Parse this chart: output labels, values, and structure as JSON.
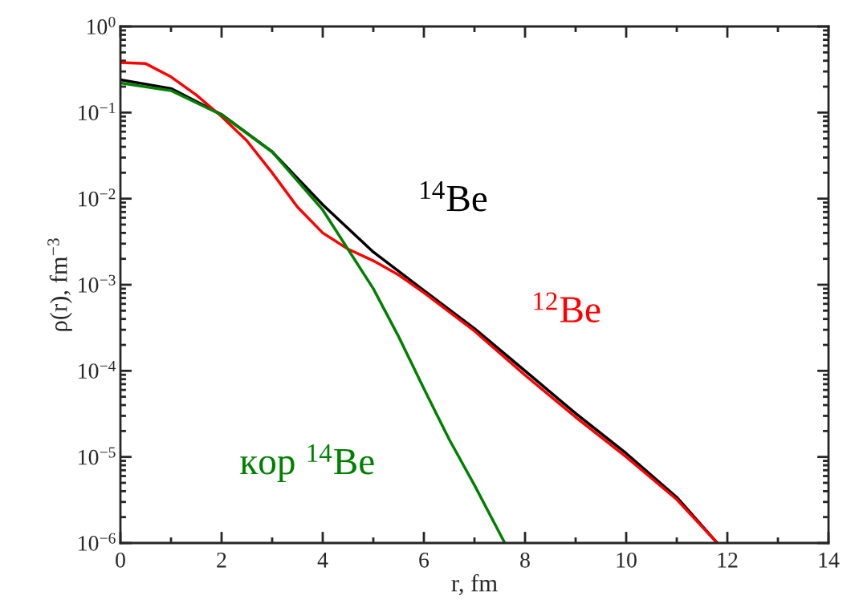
{
  "chart_data": {
    "type": "line",
    "xlabel": "r, fm",
    "ylabel": "ρ(r), fm$^{−3}$",
    "log": "y",
    "grid": false,
    "legend": false,
    "xlim": [
      0,
      14
    ],
    "xticks": [
      0,
      2,
      4,
      6,
      8,
      10,
      12,
      14
    ],
    "ylim": [
      1e-06,
      1
    ],
    "yticks": [
      {
        "value": 1e-06,
        "label": "10$^{−6}$"
      },
      {
        "value": 1e-05,
        "label": "10$^{−5}$"
      },
      {
        "value": 0.0001,
        "label": "10$^{−4}$"
      },
      {
        "value": 0.001,
        "label": "10$^{−3}$"
      },
      {
        "value": 0.01,
        "label": "10$^{−2}$"
      },
      {
        "value": 0.1,
        "label": "10$^{−1}$"
      },
      {
        "value": 1,
        "label": "10$^{0}$"
      }
    ],
    "series": [
      {
        "name": "$^{14}$Be",
        "color": "#000000",
        "x": [
          0,
          1,
          2,
          3,
          4,
          5,
          6,
          7,
          8,
          9,
          10,
          11,
          11.8
        ],
        "values": [
          0.24,
          0.19,
          0.095,
          0.035,
          0.0085,
          0.0024,
          0.00086,
          0.00031,
          0.0001,
          3.2e-05,
          1.1e-05,
          3.4e-06,
          1e-06
        ]
      },
      {
        "name": "$^{12}$Be",
        "color": "#ff0000",
        "x": [
          0,
          0.5,
          1,
          1.5,
          2,
          2.5,
          3,
          3.5,
          4,
          4.5,
          5,
          5.5,
          6,
          7,
          8,
          9,
          10,
          11,
          11.8
        ],
        "values": [
          0.38,
          0.37,
          0.26,
          0.16,
          0.09,
          0.047,
          0.02,
          0.008,
          0.004,
          0.0026,
          0.0019,
          0.0013,
          0.00081,
          0.00029,
          8.9e-05,
          2.9e-05,
          1e-05,
          3.2e-06,
          1e-06
        ]
      },
      {
        "name": "кор $^{14}$Be",
        "color": "#008000",
        "x": [
          0,
          1,
          2,
          3,
          4,
          5,
          5.5,
          6,
          6.5,
          7,
          7.6
        ],
        "values": [
          0.22,
          0.18,
          0.094,
          0.035,
          0.0074,
          0.0009,
          0.00025,
          6.2e-05,
          1.6e-05,
          4.7e-06,
          1e-06
        ]
      }
    ]
  }
}
